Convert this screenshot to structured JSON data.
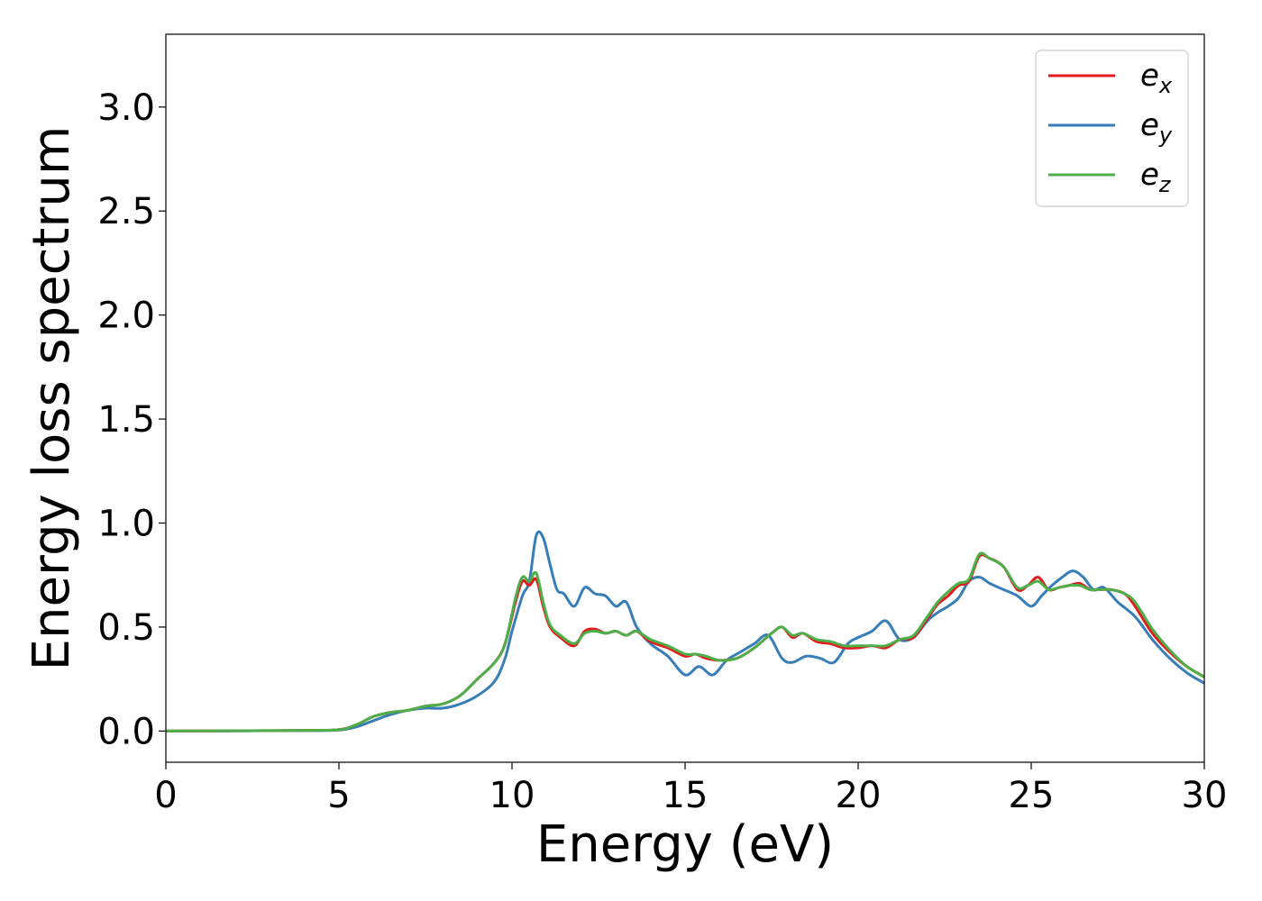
{
  "chart_data": {
    "type": "line",
    "xlabel": "Energy (eV)",
    "ylabel": "Energy loss spectrum",
    "xlim": [
      0,
      30
    ],
    "ylim": [
      -0.15,
      3.35
    ],
    "xticks": [
      0,
      5,
      10,
      15,
      20,
      25,
      30
    ],
    "xtick_labels": [
      "0",
      "5",
      "10",
      "15",
      "20",
      "25",
      "30"
    ],
    "yticks": [
      0.0,
      0.5,
      1.0,
      1.5,
      2.0,
      2.5,
      3.0
    ],
    "ytick_labels": [
      "0.0",
      "0.5",
      "1.0",
      "1.5",
      "2.0",
      "2.5",
      "3.0"
    ],
    "grid": false,
    "legend_position": "top-right",
    "series": [
      {
        "name": "e_x",
        "label_main": "e",
        "label_sub": "x",
        "color": "#e41a1c",
        "x": [
          0,
          4,
          5,
          5.5,
          6,
          6.5,
          7,
          7.5,
          8,
          8.5,
          9,
          9.5,
          9.8,
          10.1,
          10.3,
          10.5,
          10.7,
          10.9,
          11.1,
          11.4,
          11.8,
          12.1,
          12.4,
          12.7,
          13.0,
          13.3,
          13.6,
          14.0,
          14.5,
          15.0,
          15.3,
          15.6,
          16.0,
          16.5,
          17.0,
          17.5,
          17.8,
          18.1,
          18.4,
          18.8,
          19.2,
          19.6,
          20.0,
          20.4,
          20.8,
          21.2,
          21.6,
          22.0,
          22.3,
          22.6,
          22.9,
          23.2,
          23.5,
          23.8,
          24.2,
          24.6,
          24.9,
          25.2,
          25.5,
          25.8,
          26.1,
          26.4,
          26.7,
          27.0,
          27.3,
          27.7,
          28.0,
          28.5,
          29.0,
          29.5,
          30.0
        ],
        "y": [
          0.0,
          0.003,
          0.007,
          0.03,
          0.07,
          0.09,
          0.1,
          0.12,
          0.13,
          0.17,
          0.25,
          0.33,
          0.42,
          0.62,
          0.72,
          0.7,
          0.73,
          0.6,
          0.5,
          0.45,
          0.41,
          0.48,
          0.49,
          0.47,
          0.48,
          0.46,
          0.48,
          0.43,
          0.4,
          0.36,
          0.37,
          0.35,
          0.34,
          0.35,
          0.4,
          0.47,
          0.5,
          0.45,
          0.47,
          0.43,
          0.42,
          0.4,
          0.4,
          0.41,
          0.4,
          0.44,
          0.45,
          0.54,
          0.61,
          0.65,
          0.7,
          0.72,
          0.84,
          0.83,
          0.79,
          0.68,
          0.7,
          0.74,
          0.68,
          0.69,
          0.7,
          0.71,
          0.68,
          0.68,
          0.68,
          0.66,
          0.6,
          0.47,
          0.38,
          0.31,
          0.26
        ]
      },
      {
        "name": "e_y",
        "label_main": "e",
        "label_sub": "y",
        "color": "#377eb8",
        "x": [
          0,
          4,
          5,
          5.5,
          6,
          6.5,
          7,
          7.5,
          8,
          8.5,
          9,
          9.5,
          9.8,
          10.0,
          10.3,
          10.5,
          10.7,
          10.9,
          11.1,
          11.3,
          11.5,
          11.8,
          12.1,
          12.4,
          12.7,
          13.0,
          13.3,
          13.6,
          14.0,
          14.5,
          15.0,
          15.4,
          15.8,
          16.2,
          16.6,
          17.0,
          17.4,
          17.8,
          18.1,
          18.5,
          18.9,
          19.3,
          19.7,
          20.0,
          20.4,
          20.8,
          21.2,
          21.6,
          22.0,
          22.3,
          22.6,
          22.9,
          23.2,
          23.5,
          23.8,
          24.2,
          24.6,
          25.0,
          25.3,
          25.6,
          25.9,
          26.2,
          26.5,
          26.8,
          27.1,
          27.5,
          28.0,
          28.5,
          29.0,
          29.5,
          30.0
        ],
        "y": [
          0.0,
          0.002,
          0.005,
          0.02,
          0.05,
          0.08,
          0.1,
          0.11,
          0.11,
          0.13,
          0.17,
          0.24,
          0.35,
          0.48,
          0.65,
          0.72,
          0.94,
          0.93,
          0.8,
          0.68,
          0.66,
          0.6,
          0.69,
          0.66,
          0.65,
          0.6,
          0.62,
          0.5,
          0.42,
          0.36,
          0.27,
          0.31,
          0.27,
          0.34,
          0.38,
          0.42,
          0.46,
          0.35,
          0.33,
          0.36,
          0.35,
          0.33,
          0.42,
          0.45,
          0.48,
          0.53,
          0.44,
          0.45,
          0.53,
          0.57,
          0.6,
          0.64,
          0.72,
          0.74,
          0.71,
          0.68,
          0.65,
          0.6,
          0.65,
          0.7,
          0.74,
          0.77,
          0.74,
          0.68,
          0.69,
          0.62,
          0.55,
          0.44,
          0.35,
          0.28,
          0.23
        ]
      },
      {
        "name": "e_z",
        "label_main": "e",
        "label_sub": "z",
        "color": "#4daf4a",
        "x": [
          0,
          4,
          5,
          5.5,
          6,
          6.5,
          7,
          7.5,
          8,
          8.5,
          9,
          9.5,
          9.8,
          10.1,
          10.3,
          10.5,
          10.7,
          10.9,
          11.1,
          11.4,
          11.8,
          12.1,
          12.4,
          12.7,
          13.0,
          13.3,
          13.6,
          14.0,
          14.5,
          15.0,
          15.3,
          15.6,
          16.0,
          16.5,
          17.0,
          17.5,
          17.8,
          18.1,
          18.4,
          18.8,
          19.2,
          19.6,
          20.0,
          20.4,
          20.8,
          21.2,
          21.6,
          22.0,
          22.3,
          22.6,
          22.9,
          23.2,
          23.5,
          23.8,
          24.2,
          24.6,
          24.9,
          25.2,
          25.5,
          25.8,
          26.1,
          26.4,
          26.7,
          27.0,
          27.3,
          27.7,
          28.0,
          28.5,
          29.0,
          29.5,
          30.0
        ],
        "y": [
          0.0,
          0.003,
          0.007,
          0.03,
          0.07,
          0.09,
          0.1,
          0.12,
          0.13,
          0.17,
          0.25,
          0.33,
          0.42,
          0.64,
          0.74,
          0.72,
          0.76,
          0.62,
          0.51,
          0.46,
          0.42,
          0.47,
          0.48,
          0.47,
          0.48,
          0.46,
          0.48,
          0.44,
          0.41,
          0.37,
          0.37,
          0.36,
          0.34,
          0.35,
          0.4,
          0.47,
          0.5,
          0.46,
          0.47,
          0.44,
          0.43,
          0.41,
          0.41,
          0.41,
          0.41,
          0.44,
          0.46,
          0.55,
          0.62,
          0.67,
          0.71,
          0.73,
          0.85,
          0.83,
          0.79,
          0.69,
          0.7,
          0.72,
          0.68,
          0.69,
          0.7,
          0.7,
          0.68,
          0.68,
          0.68,
          0.66,
          0.62,
          0.49,
          0.39,
          0.31,
          0.26
        ]
      }
    ]
  }
}
